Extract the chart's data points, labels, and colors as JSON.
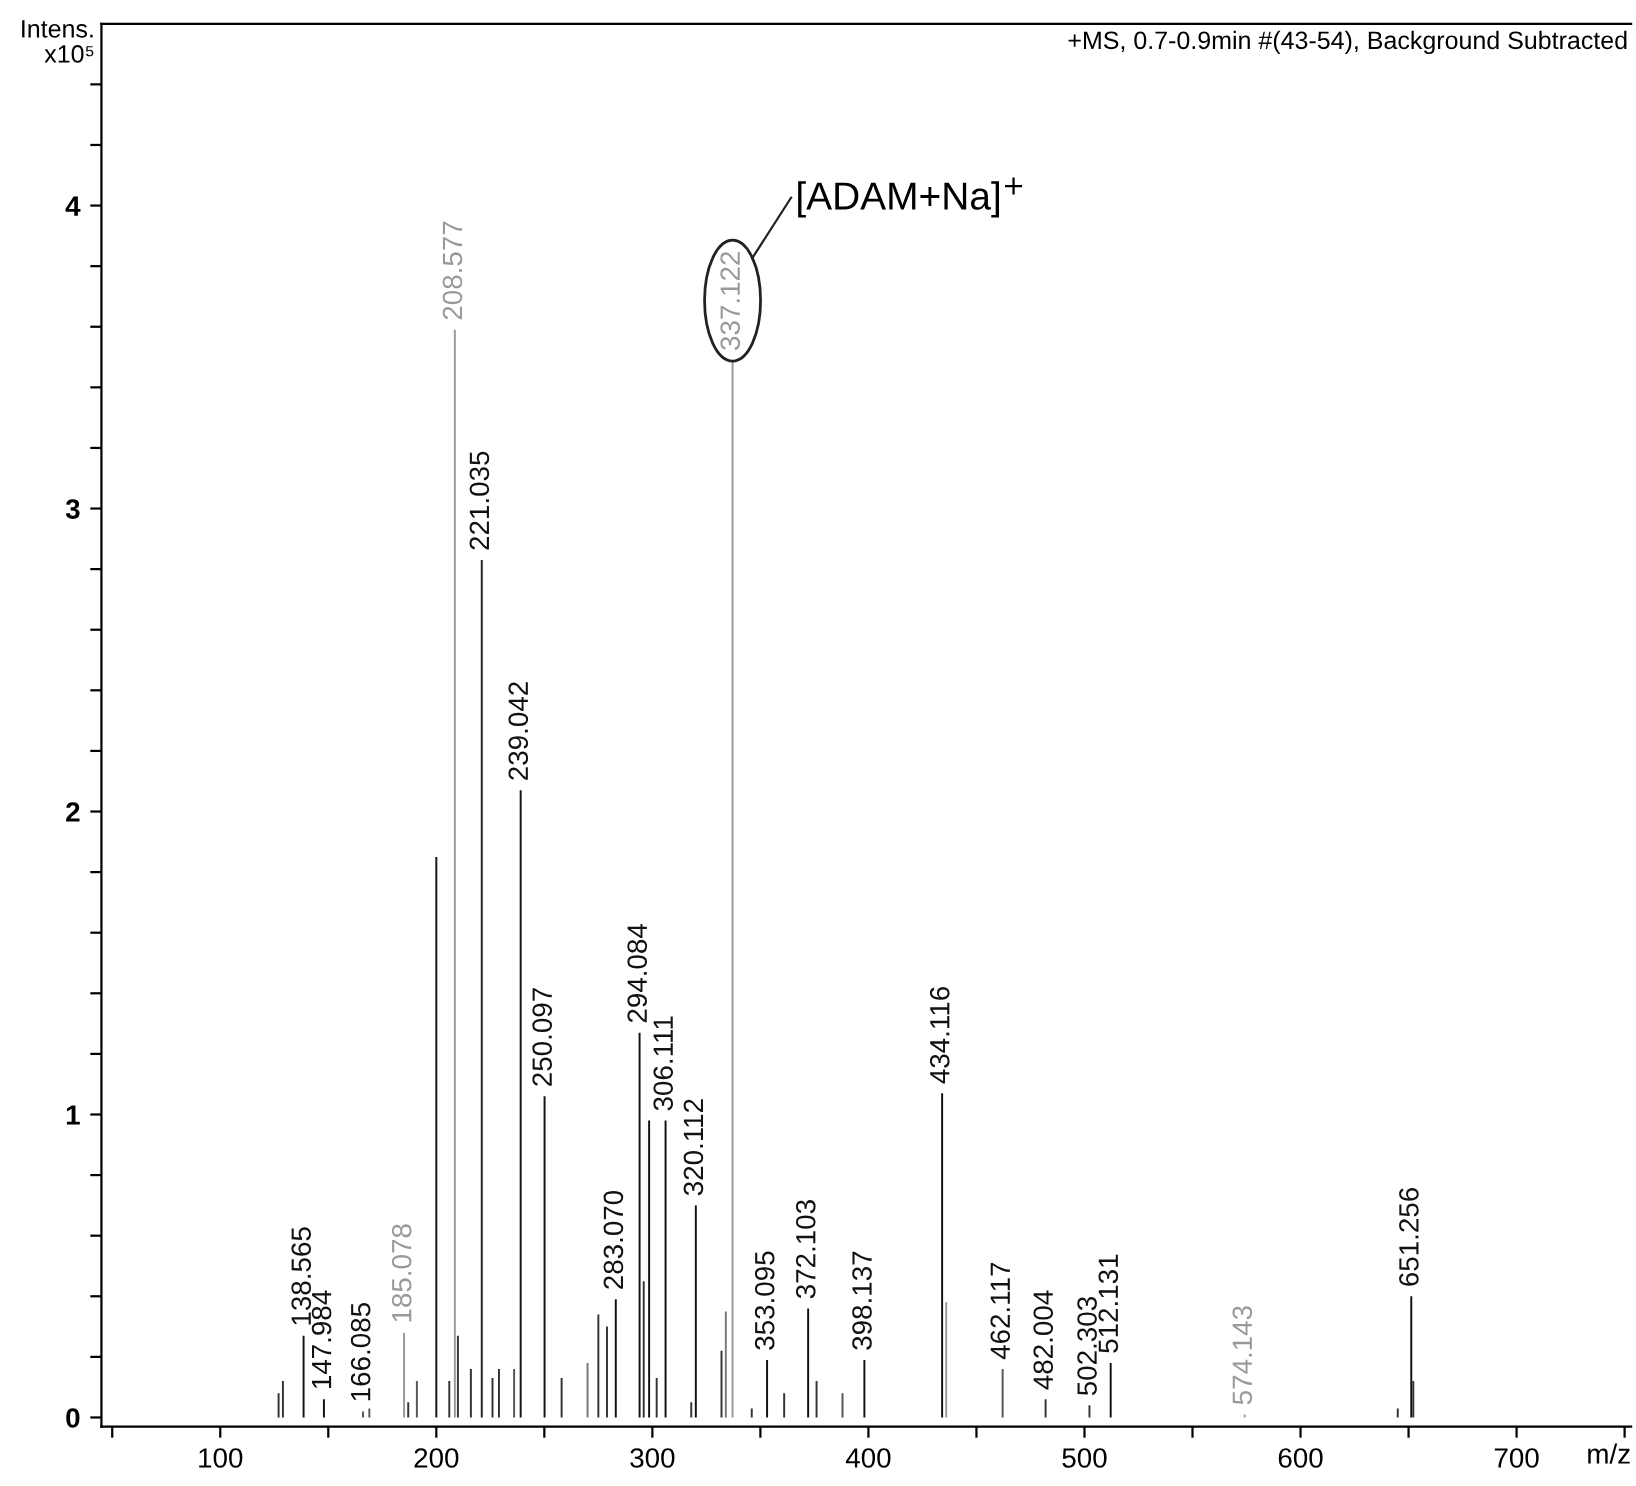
{
  "chart_data": {
    "type": "bar",
    "subtitle": "+MS, 0.7-0.9min #(43-54), Background Subtracted",
    "xlabel": "m/z",
    "ylabel": "Intens.\nx10⁵",
    "x": [
      127,
      129,
      138.565,
      147.984,
      166.085,
      169,
      185.078,
      187,
      191,
      200,
      206,
      208.577,
      210,
      216,
      221.035,
      226,
      229,
      236,
      239.042,
      250.097,
      258,
      270,
      275,
      279,
      283.07,
      294.084,
      296,
      298.5,
      302,
      306.111,
      318,
      320.112,
      332,
      334,
      337.122,
      346,
      353.095,
      361,
      372.103,
      376,
      388,
      398.137,
      434.116,
      436,
      462.117,
      482.004,
      502.303,
      512.131,
      574.143,
      645,
      651.256,
      652.2
    ],
    "values": [
      0.08,
      0.12,
      0.27,
      0.06,
      0.02,
      0.03,
      0.28,
      0.05,
      0.12,
      1.85,
      0.12,
      3.59,
      0.27,
      0.16,
      2.83,
      0.13,
      0.16,
      0.16,
      2.07,
      1.06,
      0.13,
      0.18,
      0.34,
      0.3,
      0.39,
      1.27,
      0.45,
      0.98,
      0.13,
      0.98,
      0.05,
      0.7,
      0.22,
      0.35,
      3.49,
      0.03,
      0.19,
      0.08,
      0.36,
      0.12,
      0.08,
      0.19,
      1.07,
      0.38,
      0.16,
      0.06,
      0.04,
      0.18,
      0.01,
      0.03,
      0.4,
      0.12
    ],
    "colors": [
      "#333333",
      "#333333",
      "#111111",
      "#111111",
      "#555555",
      "#555555",
      "#999999",
      "#333333",
      "#555555",
      "#111111",
      "#333333",
      "#999999",
      "#333333",
      "#333333",
      "#222222",
      "#333333",
      "#333333",
      "#555555",
      "#111111",
      "#111111",
      "#333333",
      "#777777",
      "#333333",
      "#333333",
      "#111111",
      "#111111",
      "#333333",
      "#111111",
      "#333333",
      "#111111",
      "#333333",
      "#111111",
      "#333333",
      "#777777",
      "#999999",
      "#333333",
      "#111111",
      "#333333",
      "#111111",
      "#333333",
      "#555555",
      "#111111",
      "#111111",
      "#999999",
      "#555555",
      "#333333",
      "#333333",
      "#111111",
      "#999999",
      "#333333",
      "#111111",
      "#333333"
    ],
    "annotations": [
      {
        "text": "138.565",
        "x": 138.565,
        "y": 0.27
      },
      {
        "text": "147.984",
        "x": 147.984,
        "y": 0.06
      },
      {
        "text": "166.085",
        "x": 166.085,
        "y": 0.02
      },
      {
        "text": "185.078",
        "x": 185.078,
        "y": 0.28
      },
      {
        "text": "208.577",
        "x": 208.577,
        "y": 3.59
      },
      {
        "text": "221.035",
        "x": 221.035,
        "y": 2.83
      },
      {
        "text": "239.042",
        "x": 239.042,
        "y": 2.07
      },
      {
        "text": "250.097",
        "x": 250.097,
        "y": 1.06
      },
      {
        "text": "283.070",
        "x": 283.07,
        "y": 0.39
      },
      {
        "text": "294.084",
        "x": 294.084,
        "y": 1.27
      },
      {
        "text": "306.111",
        "x": 306.111,
        "y": 0.98
      },
      {
        "text": "320.112",
        "x": 320.112,
        "y": 0.7
      },
      {
        "text": "337.122",
        "x": 337.122,
        "y": 3.49
      },
      {
        "text": "353.095",
        "x": 353.095,
        "y": 0.19
      },
      {
        "text": "372.103",
        "x": 372.103,
        "y": 0.36
      },
      {
        "text": "398.137",
        "x": 398.137,
        "y": 0.19
      },
      {
        "text": "434.116",
        "x": 434.116,
        "y": 1.07
      },
      {
        "text": "462.117",
        "x": 462.117,
        "y": 0.16
      },
      {
        "text": "482.004",
        "x": 482.004,
        "y": 0.06
      },
      {
        "text": "502.303",
        "x": 502.303,
        "y": 0.04
      },
      {
        "text": "512.131",
        "x": 512.131,
        "y": 0.18
      },
      {
        "text": "574.143",
        "x": 574.143,
        "y": 0.01
      },
      {
        "text": "651.256",
        "x": 651.256,
        "y": 0.4
      },
      "[ADAM+Na]$^{+}$"
    ],
    "xlim": [
      45,
      753
    ],
    "ylim": [
      -0.03,
      4.6
    ],
    "xticks": [
      {
        "value": 50,
        "label": null
      },
      100,
      {
        "value": 150,
        "label": null
      },
      200,
      {
        "value": 250,
        "label": null
      },
      300,
      {
        "value": 350,
        "label": null
      },
      400,
      {
        "value": 450,
        "label": null
      },
      500,
      {
        "value": 550,
        "label": null
      },
      600,
      {
        "value": 650,
        "label": null
      },
      700,
      {
        "value": 750,
        "label": null
      }
    ],
    "yticks": [
      0,
      {
        "value": 0.2,
        "label": null
      },
      {
        "value": 0.4,
        "label": null
      },
      {
        "value": 0.6,
        "label": null
      },
      {
        "value": 0.8,
        "label": null
      },
      1,
      {
        "value": 1.2,
        "label": null
      },
      {
        "value": 1.4,
        "label": null
      },
      {
        "value": 1.6,
        "label": null
      },
      {
        "value": 1.8,
        "label": null
      },
      2,
      {
        "value": 2.2,
        "label": null
      },
      {
        "value": 2.4,
        "label": null
      },
      {
        "value": 2.6,
        "label": null
      },
      {
        "value": 2.8,
        "label": null
      },
      3,
      {
        "value": 3.2,
        "label": null
      },
      {
        "value": 3.4,
        "label": null
      },
      {
        "value": 3.6,
        "label": null
      },
      {
        "value": 3.8,
        "label": null
      },
      4,
      {
        "value": 4.2,
        "label": null
      },
      {
        "value": 4.4,
        "label": null
      }
    ],
    "grid": false
  }
}
